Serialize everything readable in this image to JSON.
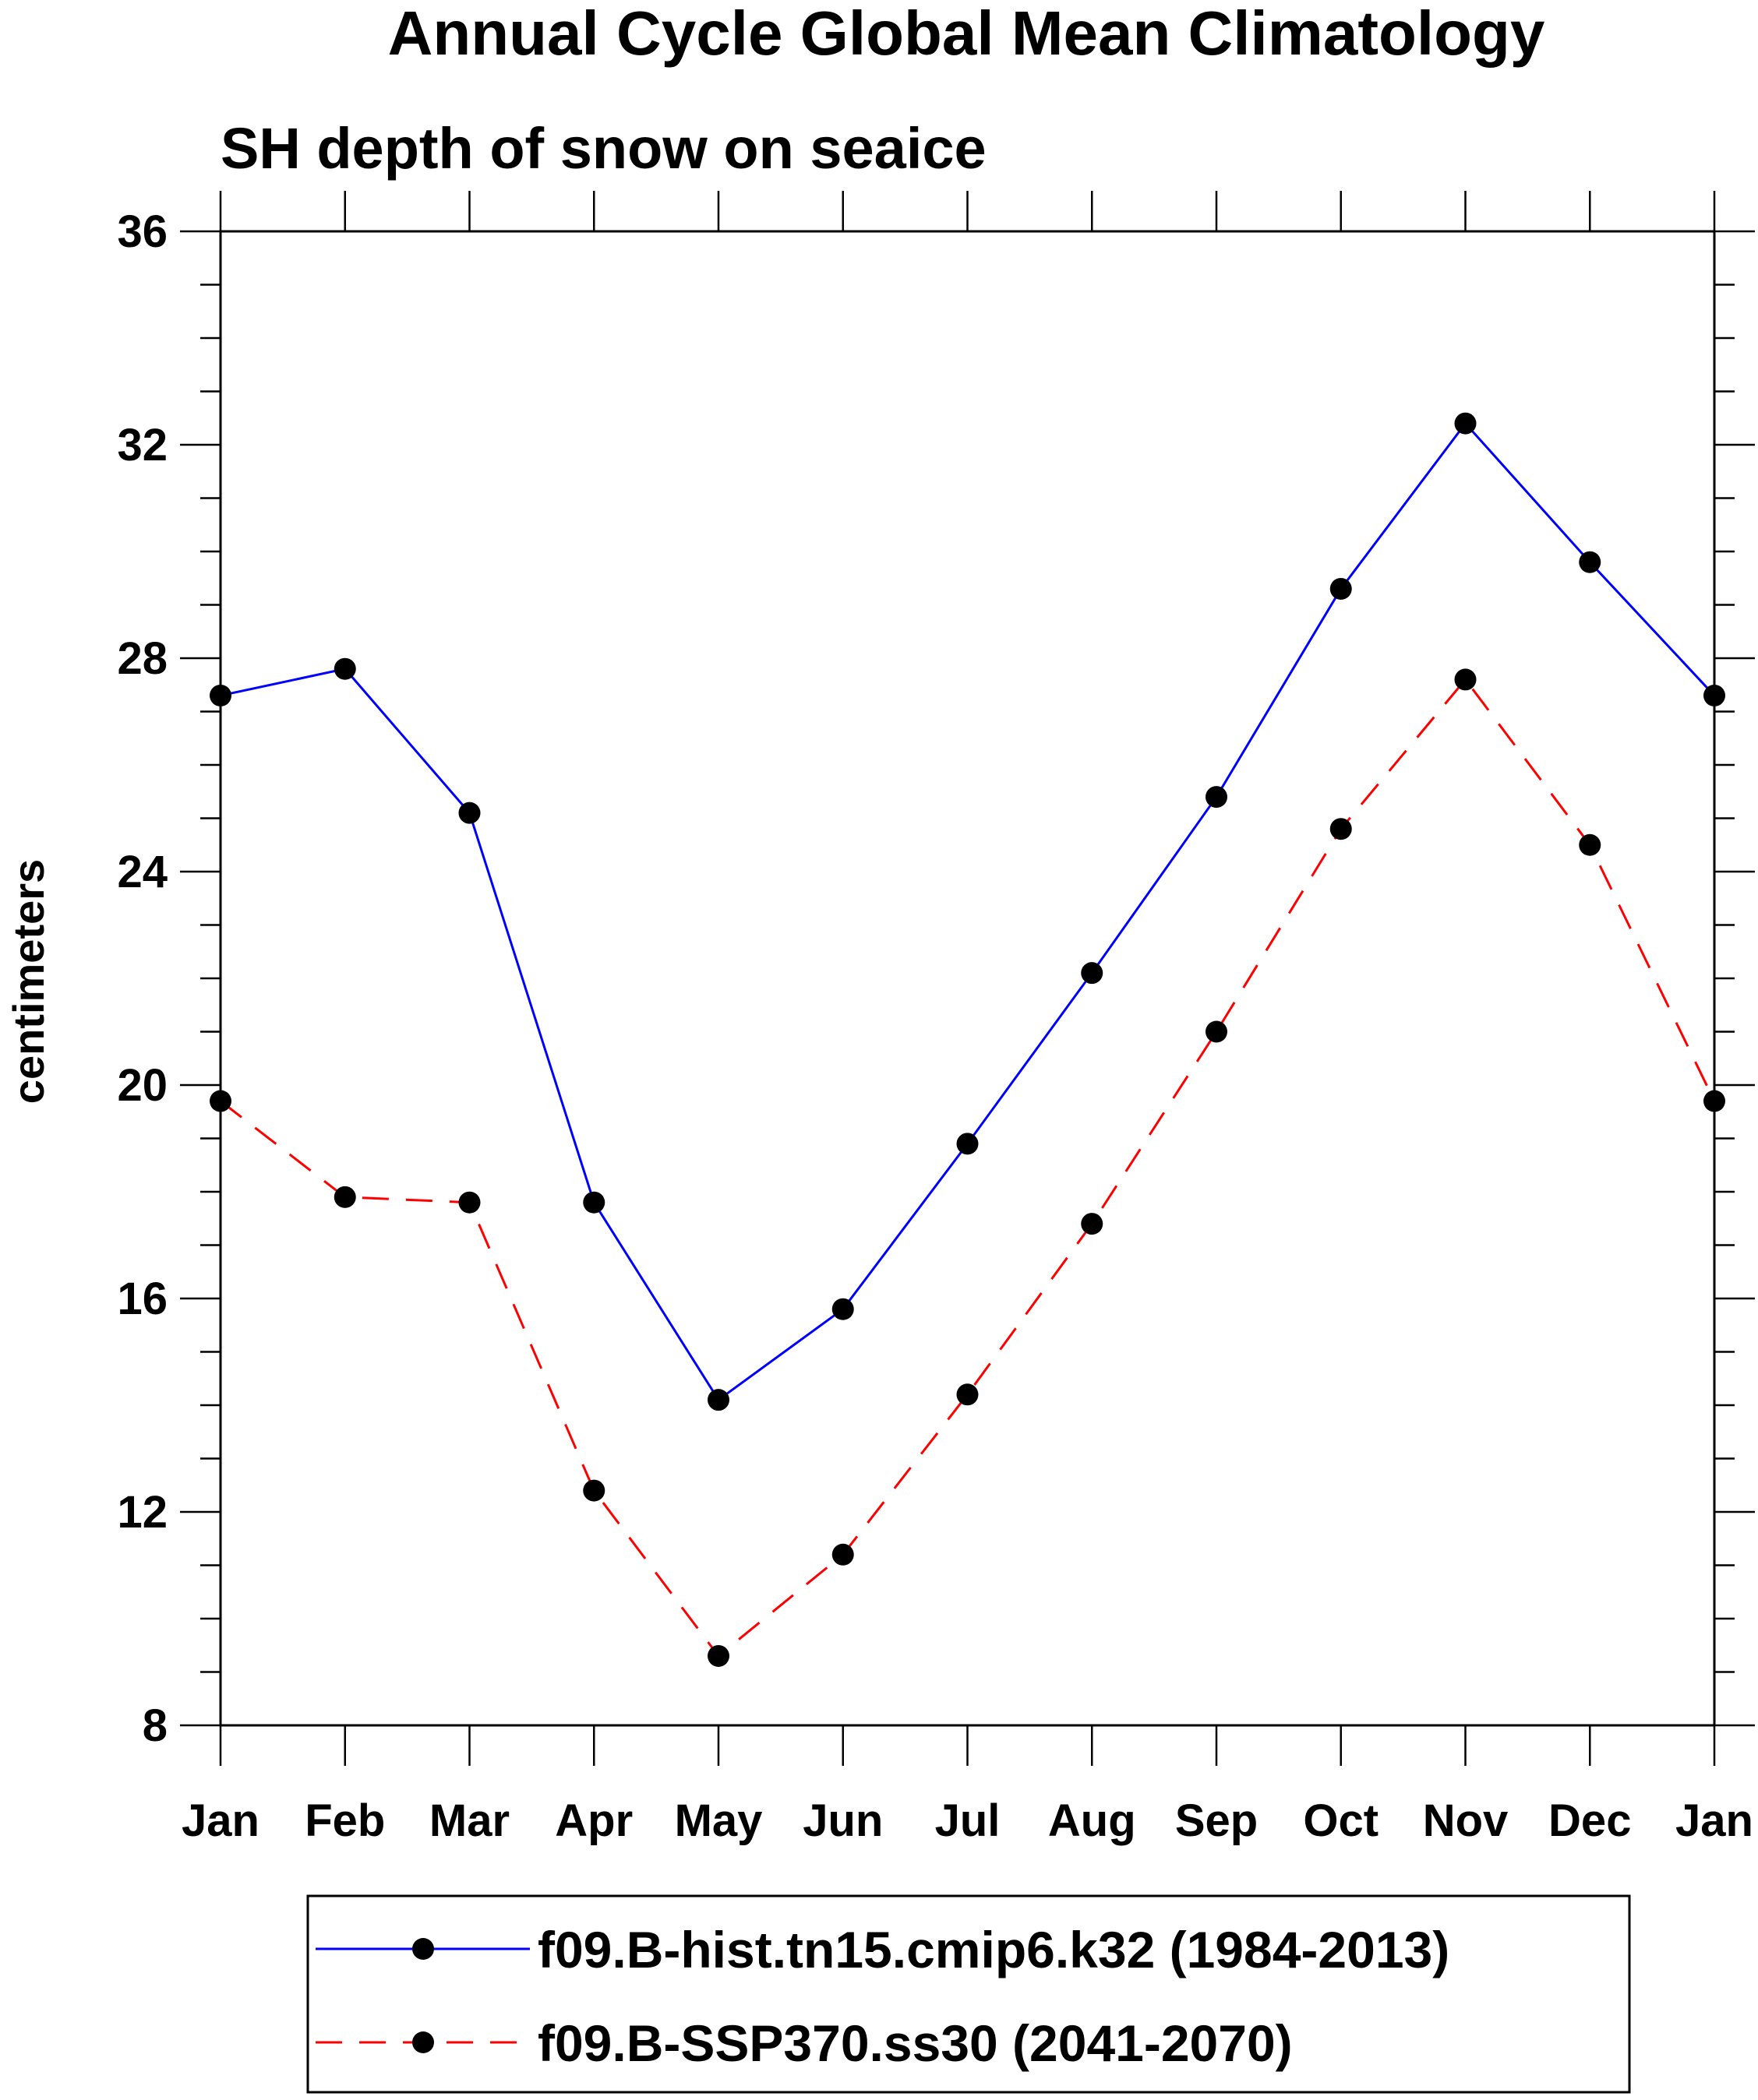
{
  "chart_data": {
    "type": "line",
    "title": "Annual Cycle Global Mean Climatology",
    "subtitle": "SH depth of snow on seaice",
    "xlabel": "",
    "ylabel": "centimeters",
    "ylim": [
      8,
      36
    ],
    "y_major_ticks": [
      8,
      12,
      16,
      20,
      24,
      28,
      32,
      36
    ],
    "y_minor_step": 1,
    "grid": false,
    "categories": [
      "Jan",
      "Feb",
      "Mar",
      "Apr",
      "May",
      "Jun",
      "Jul",
      "Aug",
      "Sep",
      "Oct",
      "Nov",
      "Dec",
      "Jan"
    ],
    "series": [
      {
        "name": "f09.B-hist.tn15.cmip6.k32 (1984-2013)",
        "color": "#0000ff",
        "line_style": "solid",
        "marker": "filled-circle",
        "marker_color": "#000000",
        "values": [
          27.3,
          27.8,
          25.1,
          17.8,
          14.1,
          15.8,
          18.9,
          22.1,
          25.4,
          29.3,
          32.4,
          29.8,
          27.3
        ]
      },
      {
        "name": "f09.B-SSP370.ss30 (2041-2070)",
        "color": "#ff0000",
        "line_style": "dashed",
        "marker": "filled-circle",
        "marker_color": "#000000",
        "values": [
          19.7,
          17.9,
          17.8,
          12.4,
          9.3,
          11.2,
          14.2,
          17.4,
          21.0,
          24.8,
          27.6,
          24.5,
          19.7
        ]
      }
    ],
    "legend_position": "bottom-center"
  }
}
